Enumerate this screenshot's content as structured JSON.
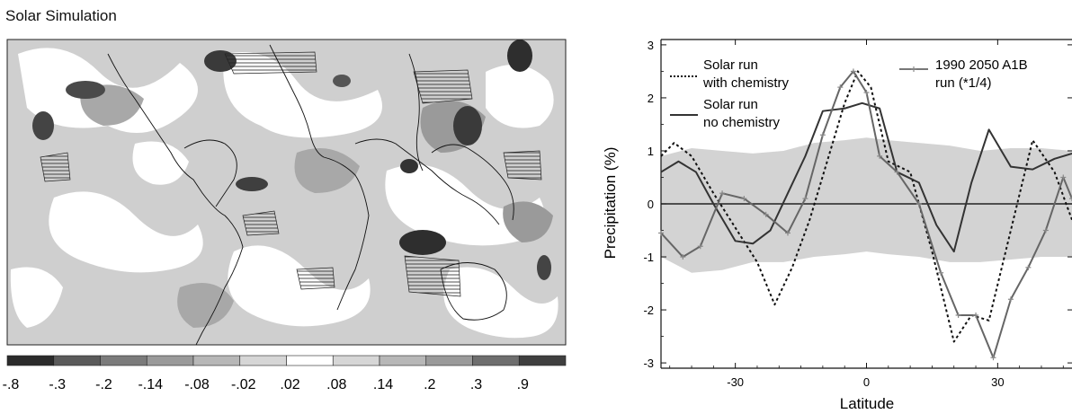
{
  "left_panel": {
    "title": "Solar Simulation",
    "colorbar": {
      "labels": [
        "-.8",
        "-.3",
        "-.2",
        "-.14",
        "-.08",
        "-.02",
        ".02",
        ".08",
        ".14",
        ".2",
        ".3",
        ".9"
      ],
      "colors": [
        "#2b2b2b",
        "#5a5a5a",
        "#7b7b7b",
        "#9a9a9a",
        "#b7b7b7",
        "#d6d6d6",
        "#ffffff",
        "#d6d6d6",
        "#b7b7b7",
        "#9a9a9a",
        "#6e6e6e",
        "#3f3f3f"
      ]
    }
  },
  "chart_data": {
    "type": "line",
    "xlabel": "Latitude",
    "ylabel": "Precipitation (%)",
    "xlim": [
      -47,
      47
    ],
    "ylim": [
      -3.1,
      3.1
    ],
    "xticks": [
      -30,
      0,
      30
    ],
    "yticks": [
      3,
      2,
      1,
      0,
      -1,
      -2,
      -3
    ],
    "legend": [
      {
        "lines": [
          "Solar run",
          "with chemistry"
        ],
        "style": "dotted"
      },
      {
        "lines": [
          "Solar run",
          "no chemistry"
        ],
        "style": "solid"
      },
      {
        "lines": [
          "1990 2050 A1B",
          "run (*1/4)"
        ],
        "style": "solid-with-markers"
      }
    ],
    "shaded_band": {
      "x": [
        -47,
        -40,
        -33,
        -26,
        -19,
        -12,
        -5,
        0,
        5,
        12,
        19,
        26,
        33,
        40,
        47
      ],
      "upper": [
        0.9,
        1.05,
        1.0,
        0.95,
        1.0,
        1.15,
        1.2,
        1.25,
        1.2,
        1.15,
        1.1,
        1.0,
        1.05,
        1.05,
        1.0
      ],
      "lower": [
        -1.0,
        -1.3,
        -1.25,
        -1.1,
        -1.1,
        -1.0,
        -0.95,
        -0.9,
        -0.95,
        -1.0,
        -1.1,
        -1.1,
        -1.05,
        -1.0,
        -1.0
      ]
    },
    "series": [
      {
        "style": "dotted",
        "x": [
          -47,
          -44,
          -40,
          -35,
          -30,
          -25,
          -21,
          -17,
          -13,
          -9,
          -5,
          -2,
          1,
          5,
          10,
          15,
          20,
          24,
          28,
          33,
          38,
          43,
          47
        ],
        "y": [
          0.9,
          1.15,
          0.9,
          0.2,
          -0.45,
          -1.1,
          -1.9,
          -1.2,
          -0.3,
          0.8,
          1.9,
          2.5,
          2.2,
          0.8,
          0.6,
          -0.9,
          -2.6,
          -2.1,
          -2.2,
          -0.5,
          1.2,
          0.6,
          -0.3
        ]
      },
      {
        "style": "solid",
        "x": [
          -47,
          -43,
          -39,
          -35,
          -30,
          -26,
          -22,
          -18,
          -14,
          -10,
          -5,
          -1,
          3,
          7,
          12,
          16,
          20,
          24,
          28,
          33,
          38,
          43,
          47
        ],
        "y": [
          0.6,
          0.8,
          0.6,
          0.0,
          -0.7,
          -0.75,
          -0.5,
          0.2,
          0.9,
          1.75,
          1.8,
          1.9,
          1.8,
          0.6,
          0.4,
          -0.4,
          -0.9,
          0.4,
          1.4,
          0.7,
          0.65,
          0.85,
          0.95
        ]
      },
      {
        "style": "marked",
        "x": [
          -47,
          -42,
          -38,
          -33,
          -28,
          -23,
          -18,
          -14,
          -10,
          -6,
          -3,
          0,
          3,
          7,
          12,
          17,
          21,
          25,
          29,
          33,
          37,
          41,
          45,
          47
        ],
        "y": [
          -0.55,
          -1.0,
          -0.8,
          0.2,
          0.1,
          -0.2,
          -0.55,
          0.1,
          1.3,
          2.2,
          2.5,
          2.1,
          0.9,
          0.6,
          0.0,
          -1.3,
          -2.1,
          -2.1,
          -2.9,
          -1.8,
          -1.2,
          -0.5,
          0.5,
          0.1
        ]
      }
    ]
  }
}
